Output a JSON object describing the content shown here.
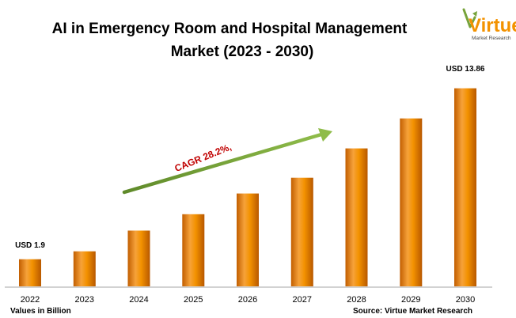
{
  "chart_data": {
    "type": "bar",
    "title_line1": "AI in Emergency Room and Hospital Management",
    "title_line2": "Market (2023 - 2030)",
    "categories": [
      "2022",
      "2023",
      "2024",
      "2025",
      "2026",
      "2027",
      "2028",
      "2029",
      "2030"
    ],
    "values": [
      1.9,
      2.45,
      3.9,
      5.05,
      6.5,
      7.6,
      9.65,
      11.75,
      13.86
    ],
    "data_labels": {
      "first": "USD 1.9",
      "last": "USD 13.86"
    },
    "annotation": "CAGR 28.2%,",
    "units_note": "Values in Billion",
    "source": "Source: Virtue Market Research",
    "ylim": [
      0,
      14.5
    ],
    "grid": false,
    "bar_color": "#f39200",
    "arrow_color": "#77a33b"
  },
  "logo": {
    "name": "Virtue",
    "tagline": "Market Research",
    "color": "#f39200"
  }
}
